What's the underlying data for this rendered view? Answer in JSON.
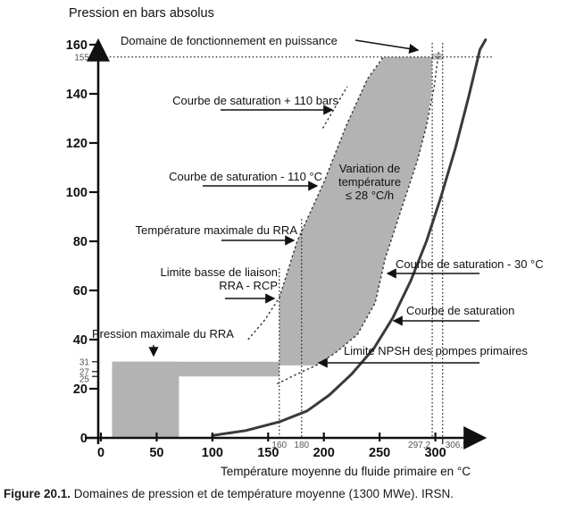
{
  "caption": {
    "label": "Figure 20.1.",
    "text": "Domaines de pression et de température moyenne (1300 MWe). IRSN."
  },
  "annotations": {
    "domaine": "Domaine de fonctionnement en puissance",
    "sat_plus110": "Courbe de saturation + 110 bars",
    "sat_minus110": "Courbe de saturation - 110 °C",
    "temp_max_rra": "Température maximale du RRA",
    "limite_basse_1": "Limite basse de liaison",
    "limite_basse_2": "RRA - RCP",
    "pression_max_rra": "Pression maximale du RRA",
    "variation_1": "Variation de",
    "variation_2": "température",
    "variation_3": "≤ 28 °C/h",
    "sat_minus30": "Courbe de saturation - 30 °C",
    "saturation": "Courbe de saturation",
    "npsh": "Limite NPSH des pompes primaires"
  },
  "chart_data": {
    "type": "area",
    "title": "Domaines de pression et de température moyenne (1300 MWe)",
    "xlabel": "Température moyenne du fluide primaire en °C",
    "ylabel": "Pression en bars absolus",
    "xlim": [
      0,
      350
    ],
    "ylim": [
      0,
      165
    ],
    "grid": false,
    "x_major_ticks": [
      0,
      50,
      100,
      150,
      200,
      250,
      300
    ],
    "y_major_ticks": [
      0,
      20,
      40,
      60,
      80,
      100,
      120,
      140,
      160
    ],
    "x_minor_ticks": [
      {
        "label": "160",
        "t": 160,
        "tick": false
      },
      {
        "label": "180",
        "t": 180,
        "tick": false
      },
      {
        "label": "297,2",
        "t": 297.2,
        "tick": false,
        "anchor": "end",
        "dx": -2
      },
      {
        "label": "306,5",
        "t": 306.5,
        "tick": true,
        "anchor": "start",
        "dx": 3
      }
    ],
    "y_minor_ticks": [
      {
        "label": "155",
        "p": 155,
        "tick": false,
        "dy": 3.5
      },
      {
        "label": "31",
        "p": 31,
        "tick": true,
        "dy": 3.5
      },
      {
        "label": "27",
        "p": 27,
        "tick": true,
        "dy": 3.5
      },
      {
        "label": "25",
        "p": 25,
        "tick": true,
        "dy": 6
      }
    ],
    "reference_lines": {
      "horizontal_dotted": [
        {
          "p": 155,
          "t_from": -2,
          "t_to": 352
        }
      ],
      "vertical_dotted": [
        {
          "t": 160,
          "top_p": 69
        },
        {
          "t": 180,
          "top_p": 89
        },
        {
          "t": 297.2,
          "top_p": 160.7
        },
        {
          "t": 306.5,
          "top_p": 160.7
        }
      ]
    },
    "series": [
      {
        "id": "saturation",
        "name": "Courbe de saturation",
        "style": "solid",
        "points": [
          [
            100,
            1
          ],
          [
            130,
            3
          ],
          [
            160,
            6.5
          ],
          [
            185,
            11
          ],
          [
            205,
            17.5
          ],
          [
            225,
            26
          ],
          [
            245,
            36.5
          ],
          [
            262,
            49
          ],
          [
            278,
            64
          ],
          [
            292,
            80
          ],
          [
            305,
            98
          ],
          [
            318,
            118
          ],
          [
            330,
            139
          ],
          [
            340,
            158
          ],
          [
            345,
            162
          ]
        ]
      },
      {
        "id": "saturation-minus-110C",
        "name": "Courbe de saturation - 110 °C",
        "style": "dashed",
        "points": [
          [
            132,
            40
          ],
          [
            147,
            48
          ],
          [
            160,
            57
          ],
          [
            176,
            80
          ],
          [
            200,
            104
          ],
          [
            220,
            127
          ],
          [
            239,
            146
          ],
          [
            254,
            155.5
          ]
        ]
      },
      {
        "id": "saturation-plus-110bars",
        "name": "Courbe de saturation + 110 bars",
        "style": "dashed",
        "points": [
          [
            199,
            126
          ],
          [
            221,
            143
          ]
        ]
      },
      {
        "id": "saturation-minus-30C",
        "name": "Courbe de saturation - 30 °C",
        "style": "dashed",
        "points": [
          [
            158,
            22
          ],
          [
            176,
            26
          ],
          [
            193,
            29.5
          ],
          [
            210,
            34.5
          ],
          [
            230,
            42
          ],
          [
            246,
            55
          ],
          [
            255,
            73
          ],
          [
            268,
            91
          ],
          [
            284,
            113
          ],
          [
            292,
            127
          ],
          [
            299,
            143
          ],
          [
            303,
            157
          ]
        ]
      }
    ],
    "regions": [
      {
        "name": "rra-block",
        "fill": "#b3b3b3",
        "points": [
          [
            10,
            0
          ],
          [
            10,
            31
          ],
          [
            70,
            31
          ],
          [
            70,
            0
          ]
        ]
      },
      {
        "name": "rra-pressure-band",
        "fill": "#b3b3b3",
        "points": [
          [
            10,
            25
          ],
          [
            10,
            31
          ],
          [
            160,
            31
          ],
          [
            160,
            25
          ]
        ]
      },
      {
        "name": "operating-domain",
        "fill": "#b3b3b3",
        "points": [
          [
            160,
            29.5
          ],
          [
            160,
            57
          ],
          [
            176,
            80
          ],
          [
            200,
            104
          ],
          [
            220,
            127
          ],
          [
            239,
            146
          ],
          [
            254,
            155
          ],
          [
            297.2,
            155
          ],
          [
            296.5,
            140
          ],
          [
            292,
            127
          ],
          [
            284,
            113
          ],
          [
            268,
            91
          ],
          [
            255,
            73
          ],
          [
            246,
            55
          ],
          [
            230,
            42
          ],
          [
            210,
            34.5
          ],
          [
            193,
            29.5
          ]
        ]
      },
      {
        "name": "power-operation-segment",
        "fill": "#c4c4c4",
        "points": [
          [
            297.2,
            153.8
          ],
          [
            297.2,
            156.4
          ],
          [
            306.5,
            156.4
          ],
          [
            306.5,
            153.8
          ]
        ]
      }
    ]
  }
}
